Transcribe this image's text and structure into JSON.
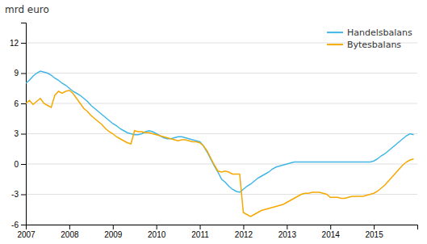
{
  "chart_data": {
    "type": "line",
    "title": "mrd euro",
    "x": [
      2007,
      2007.0833333333333,
      2007.1666666666667,
      2007.25,
      2007.3333333333333,
      2007.4166666666667,
      2007.5,
      2007.5833333333333,
      2007.6666666666667,
      2007.75,
      2007.8333333333333,
      2007.9166666666667,
      2008,
      2008.0833333333333,
      2008.1666666666667,
      2008.25,
      2008.3333333333333,
      2008.4166666666667,
      2008.5,
      2008.5833333333333,
      2008.6666666666667,
      2008.75,
      2008.8333333333333,
      2008.9166666666667,
      2009,
      2009.0833333333333,
      2009.1666666666667,
      2009.25,
      2009.3333333333333,
      2009.4166666666667,
      2009.5,
      2009.5833333333333,
      2009.6666666666667,
      2009.75,
      2009.8333333333333,
      2009.9166666666667,
      2010,
      2010.0833333333333,
      2010.1666666666667,
      2010.25,
      2010.3333333333333,
      2010.4166666666667,
      2010.5,
      2010.5833333333333,
      2010.6666666666667,
      2010.75,
      2010.8333333333333,
      2010.9166666666667,
      2011,
      2011.0833333333333,
      2011.1666666666667,
      2011.25,
      2011.3333333333333,
      2011.4166666666667,
      2011.5,
      2011.5833333333333,
      2011.6666666666667,
      2011.75,
      2011.8333333333333,
      2011.9166666666667,
      2012,
      2012.0833333333333,
      2012.1666666666667,
      2012.25,
      2012.3333333333333,
      2012.4166666666667,
      2012.5,
      2012.5833333333333,
      2012.6666666666667,
      2012.75,
      2012.8333333333333,
      2012.9166666666667,
      2013,
      2013.0833333333333,
      2013.1666666666667,
      2013.25,
      2013.3333333333333,
      2013.4166666666667,
      2013.5,
      2013.5833333333333,
      2013.6666666666667,
      2013.75,
      2013.8333333333333,
      2013.9166666666667,
      2014,
      2014.0833333333333,
      2014.1666666666667,
      2014.25,
      2014.3333333333333,
      2014.4166666666667,
      2014.5,
      2014.5833333333333,
      2014.6666666666667,
      2014.75,
      2014.8333333333333,
      2014.9166666666667,
      2015,
      2015.0833333333333,
      2015.1666666666667,
      2015.25,
      2015.3333333333333,
      2015.4166666666667,
      2015.5,
      2015.5833333333333,
      2015.6666666666667,
      2015.75,
      2015.8333333333333,
      2015.9166666666667
    ],
    "series": [
      {
        "name": "Handelsbalans",
        "color": "#41B6E6",
        "values": [
          8.0,
          8.3,
          8.7,
          9.0,
          9.2,
          9.1,
          9.0,
          8.8,
          8.5,
          8.3,
          8.0,
          7.8,
          7.5,
          7.2,
          7.0,
          6.8,
          6.5,
          6.2,
          5.8,
          5.5,
          5.2,
          4.9,
          4.6,
          4.3,
          4.0,
          3.8,
          3.5,
          3.3,
          3.1,
          3.0,
          2.9,
          2.9,
          3.0,
          3.2,
          3.3,
          3.2,
          3.0,
          2.8,
          2.6,
          2.5,
          2.5,
          2.6,
          2.7,
          2.7,
          2.6,
          2.5,
          2.4,
          2.3,
          2.2,
          1.8,
          1.2,
          0.5,
          -0.2,
          -0.8,
          -1.5,
          -1.8,
          -2.2,
          -2.5,
          -2.7,
          -2.8,
          -2.5,
          -2.2,
          -2.0,
          -1.7,
          -1.4,
          -1.2,
          -1.0,
          -0.8,
          -0.5,
          -0.3,
          -0.2,
          -0.1,
          0.0,
          0.1,
          0.2,
          0.2,
          0.2,
          0.2,
          0.2,
          0.2,
          0.2,
          0.2,
          0.2,
          0.2,
          0.2,
          0.2,
          0.2,
          0.2,
          0.2,
          0.2,
          0.2,
          0.2,
          0.2,
          0.2,
          0.2,
          0.2,
          0.3,
          0.5,
          0.8,
          1.0,
          1.3,
          1.6,
          1.9,
          2.2,
          2.5,
          2.8,
          3.0,
          2.9
        ]
      },
      {
        "name": "Bytesbalans",
        "color": "#F5A800",
        "values": [
          6.0,
          6.3,
          5.9,
          6.2,
          6.5,
          6.0,
          5.8,
          5.6,
          6.8,
          7.2,
          7.0,
          7.2,
          7.3,
          7.0,
          6.5,
          6.0,
          5.5,
          5.2,
          4.8,
          4.5,
          4.2,
          3.9,
          3.5,
          3.2,
          3.0,
          2.7,
          2.5,
          2.3,
          2.1,
          2.0,
          3.3,
          3.2,
          3.2,
          3.1,
          3.1,
          3.0,
          2.9,
          2.8,
          2.7,
          2.6,
          2.5,
          2.4,
          2.3,
          2.4,
          2.4,
          2.3,
          2.2,
          2.2,
          2.1,
          1.8,
          1.3,
          0.6,
          -0.1,
          -0.7,
          -0.8,
          -0.7,
          -0.8,
          -1.0,
          -1.0,
          -1.0,
          -4.8,
          -5.0,
          -5.2,
          -5.0,
          -4.8,
          -4.6,
          -4.5,
          -4.4,
          -4.3,
          -4.2,
          -4.1,
          -4.0,
          -3.8,
          -3.6,
          -3.4,
          -3.2,
          -3.0,
          -2.9,
          -2.9,
          -2.8,
          -2.8,
          -2.8,
          -2.9,
          -3.0,
          -3.3,
          -3.3,
          -3.3,
          -3.4,
          -3.4,
          -3.3,
          -3.2,
          -3.2,
          -3.2,
          -3.2,
          -3.1,
          -3.0,
          -2.9,
          -2.7,
          -2.4,
          -2.1,
          -1.7,
          -1.3,
          -0.9,
          -0.5,
          -0.1,
          0.2,
          0.4,
          0.5
        ]
      }
    ],
    "xlim": [
      2007,
      2016
    ],
    "xticks": [
      2007,
      2008,
      2009,
      2010,
      2011,
      2012,
      2013,
      2014,
      2015
    ],
    "ylim": [
      -6,
      14
    ],
    "yticks": [
      -6,
      -3,
      0,
      3,
      6,
      9,
      12
    ],
    "grid": true,
    "legend": "upper right"
  }
}
